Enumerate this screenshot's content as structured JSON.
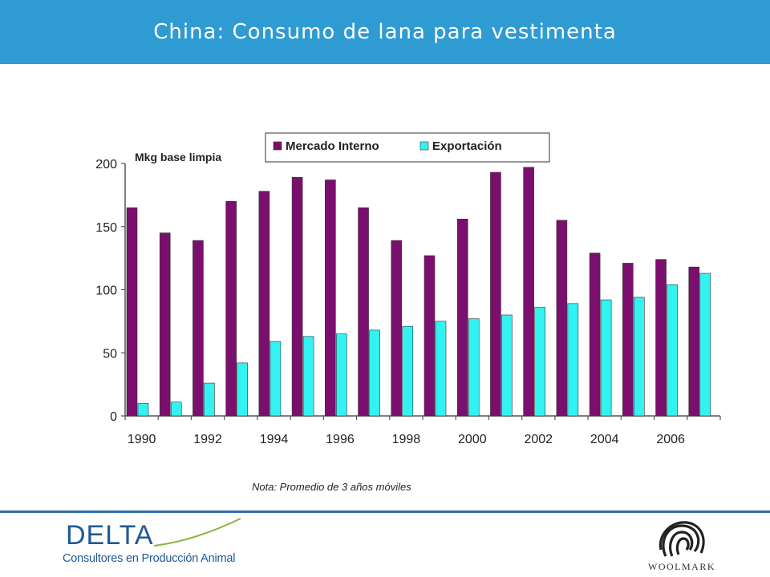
{
  "header": {
    "title": "China: Consumo de lana para vestimenta"
  },
  "colors": {
    "header_bg": "#2f9bd3",
    "series_interno": "#7b0f6e",
    "series_exportacion": "#33f2f2",
    "brand_blue": "#1f5a96"
  },
  "chart_data": {
    "type": "bar",
    "categories": [
      "1990",
      "1991",
      "1992",
      "1993",
      "1994",
      "1995",
      "1996",
      "1997",
      "1998",
      "1999",
      "2000",
      "2001",
      "2002",
      "2003",
      "2004",
      "2005",
      "2006",
      "2007"
    ],
    "tick_labels": [
      "1990",
      "1992",
      "1994",
      "1996",
      "1998",
      "2000",
      "2002",
      "2004",
      "2006"
    ],
    "y_ticks": [
      "0",
      "50",
      "100",
      "150",
      "200"
    ],
    "ylim": [
      0,
      200
    ],
    "unit_label": "Mkg base limpia",
    "legend_position": "top",
    "series": [
      {
        "name": "Mercado Interno",
        "color": "#7b0f6e",
        "values": [
          165,
          145,
          139,
          170,
          178,
          189,
          187,
          165,
          139,
          127,
          156,
          193,
          197,
          155,
          129,
          121,
          124,
          118
        ]
      },
      {
        "name": "Exportación",
        "color": "#33f2f2",
        "values": [
          10,
          11,
          26,
          42,
          59,
          63,
          65,
          68,
          71,
          75,
          77,
          80,
          86,
          89,
          92,
          94,
          104,
          113
        ]
      }
    ]
  },
  "note": "Nota: Promedio de 3 años móviles",
  "footer": {
    "delta_wordmark": "DELTA",
    "delta_subtitle": "Consultores en Producción Animal",
    "woolmark_wordmark": "WOOLMARK"
  }
}
